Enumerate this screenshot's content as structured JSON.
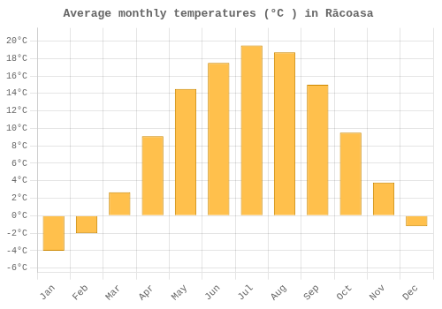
{
  "chart_data": {
    "type": "bar",
    "title": "Average monthly temperatures (°C ) in Răcoasa",
    "categories": [
      "Jan",
      "Feb",
      "Mar",
      "Apr",
      "May",
      "Jun",
      "Jul",
      "Aug",
      "Sep",
      "Oct",
      "Nov",
      "Dec"
    ],
    "values": [
      -4.0,
      -2.0,
      2.7,
      9.1,
      14.5,
      17.5,
      19.5,
      18.7,
      15.0,
      9.5,
      3.8,
      -1.2
    ],
    "color": "#FFC04C",
    "ylim": [
      -6.5,
      21.5
    ],
    "yticks": [
      {
        "value": -6,
        "label": "-6°C"
      },
      {
        "value": -4,
        "label": "-4°C"
      },
      {
        "value": -2,
        "label": "-2°C"
      },
      {
        "value": 0,
        "label": "0°C"
      },
      {
        "value": 2,
        "label": "2°C"
      },
      {
        "value": 4,
        "label": "4°C"
      },
      {
        "value": 6,
        "label": "6°C"
      },
      {
        "value": 8,
        "label": "8°C"
      },
      {
        "value": 10,
        "label": "10°C"
      },
      {
        "value": 12,
        "label": "12°C"
      },
      {
        "value": 14,
        "label": "14°C"
      },
      {
        "value": 16,
        "label": "16°C"
      },
      {
        "value": 18,
        "label": "18°C"
      },
      {
        "value": 20,
        "label": "20°C"
      }
    ],
    "grid": true
  }
}
